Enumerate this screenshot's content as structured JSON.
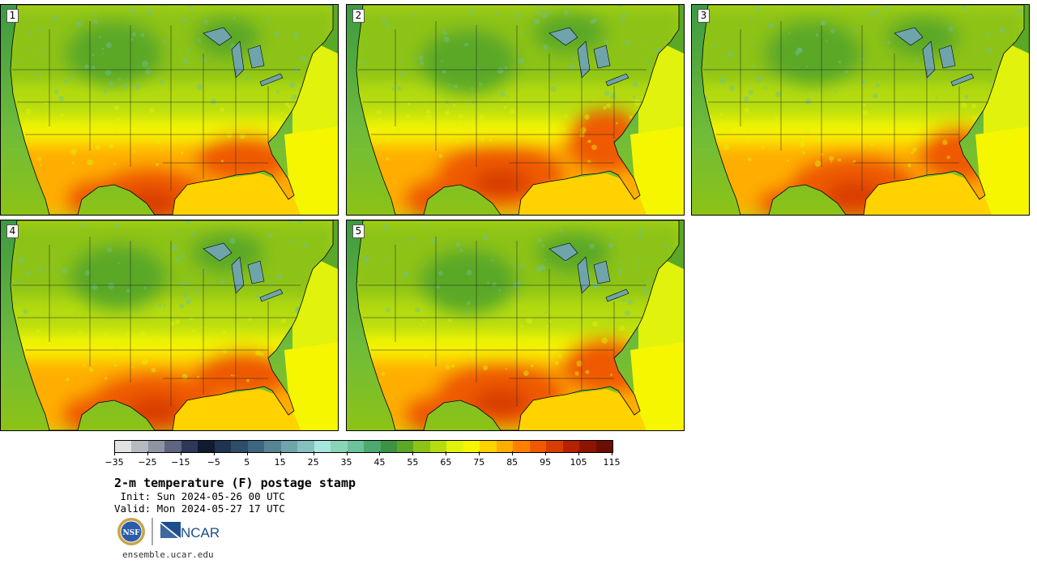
{
  "panels": [
    {
      "label": "1"
    },
    {
      "label": "2"
    },
    {
      "label": "3"
    },
    {
      "label": "4"
    },
    {
      "label": "5"
    }
  ],
  "colorbar": {
    "colors": [
      "#e2e2e2",
      "#b7b9c0",
      "#8f94a3",
      "#5e6580",
      "#2e3858",
      "#111a30",
      "#1f3450",
      "#2e4d69",
      "#3f6680",
      "#578494",
      "#6fa4ab",
      "#85bfc0",
      "#a6e6dc",
      "#8ad4b7",
      "#6cc29a",
      "#4fa96e",
      "#3d9342",
      "#5aa826",
      "#8cc316",
      "#b5dc10",
      "#e1f20c",
      "#f6f600",
      "#ffd200",
      "#ffae00",
      "#ff8000",
      "#ef5a00",
      "#d83d00",
      "#b42200",
      "#8f1400",
      "#6b0e00"
    ],
    "tick_labels": [
      "−35",
      "−25",
      "−15",
      "−5",
      "5",
      "15",
      "25",
      "35",
      "45",
      "55",
      "65",
      "75",
      "85",
      "95",
      "105",
      "115"
    ]
  },
  "title": "2-m temperature (F) postage stamp",
  "init_line": " Init: Sun 2024-05-26 00 UTC",
  "valid_line": "Valid: Mon 2024-05-27 17 UTC",
  "logos": {
    "nsf": "NSF",
    "ncar": "NCAR"
  },
  "url": "ensemble.ucar.edu"
}
